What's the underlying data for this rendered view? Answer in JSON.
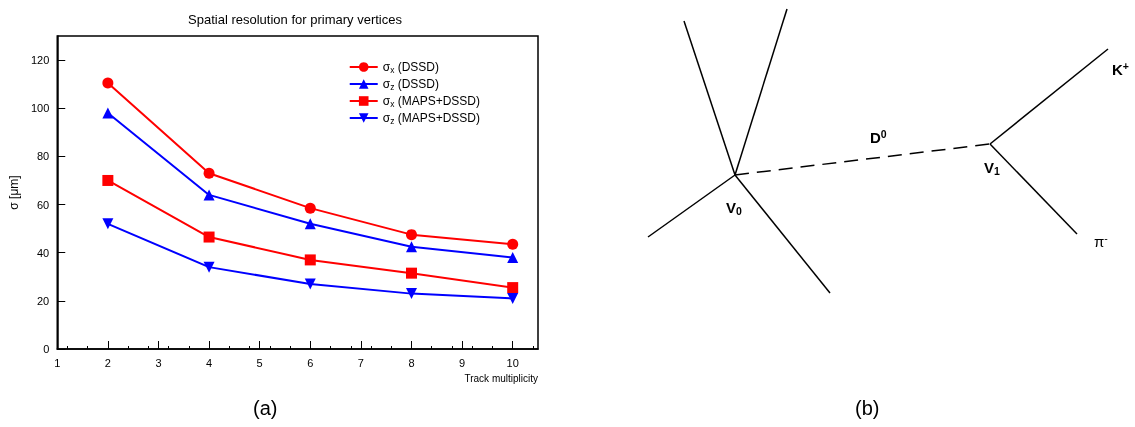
{
  "chart_data": [
    {
      "type": "line",
      "title": "Spatial resolution for primary vertices",
      "xlabel": "Track multiplicity",
      "ylabel": "σ [μm]",
      "x": [
        2,
        4,
        6,
        8,
        10
      ],
      "series": [
        {
          "name": "σ$_{x}$ (DSSD)",
          "color": "#ff0000",
          "marker": "circle",
          "values": [
            110.5,
            73,
            58.5,
            47.5,
            43.5
          ]
        },
        {
          "name": "σ$_{z}$ (DSSD)",
          "color": "#0000ff",
          "marker": "triangle",
          "values": [
            98,
            64,
            52,
            42.5,
            38
          ]
        },
        {
          "name": "σ$_{x}$ (MAPS+DSSD)",
          "color": "#ff0000",
          "marker": "square",
          "values": [
            70,
            46.5,
            37,
            31.5,
            25.5
          ]
        },
        {
          "name": "σ$_{z}$ (MAPS+DSSD)",
          "color": "#0000ff",
          "marker": "triangle_down",
          "values": [
            52,
            34,
            27,
            23,
            21
          ]
        }
      ],
      "xlim": [
        1,
        10.5
      ],
      "xticks": [
        1,
        2,
        3,
        4,
        5,
        6,
        7,
        8,
        9,
        10
      ],
      "ylim": [
        0,
        130
      ],
      "yticks": [
        0,
        20,
        40,
        60,
        80,
        100,
        120
      ],
      "grid": false,
      "legend": "top right",
      "annotations": [
        "(a)"
      ]
    },
    {
      "type": "other",
      "annotations": [
        "D$^{0}$",
        "V$_{0}$",
        "V$_{1}$",
        "K$^{+}$",
        "π$^{-}$",
        "(b)"
      ]
    }
  ]
}
